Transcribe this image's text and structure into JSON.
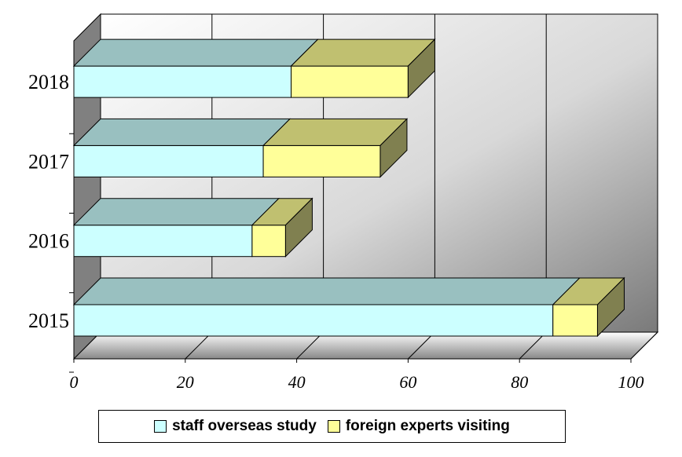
{
  "chart_data": {
    "type": "bar",
    "orientation": "horizontal",
    "stacked": true,
    "three_d": true,
    "categories": [
      "2015",
      "2016",
      "2017",
      "2018"
    ],
    "series": [
      {
        "name": "staff overseas study",
        "values": [
          86,
          32,
          34,
          39
        ],
        "color": "#ccffff",
        "top_color": "#99c0c0"
      },
      {
        "name": "foreign experts visiting",
        "values": [
          8,
          6,
          21,
          21
        ],
        "color": "#ffff99",
        "top_color": "#c0c070"
      }
    ],
    "xlim": [
      0,
      100
    ],
    "xticks": [
      "0",
      "20",
      "40",
      "60",
      "80",
      "100"
    ],
    "grid": true,
    "legend_position": "bottom",
    "title": "",
    "xlabel": "",
    "ylabel": ""
  }
}
